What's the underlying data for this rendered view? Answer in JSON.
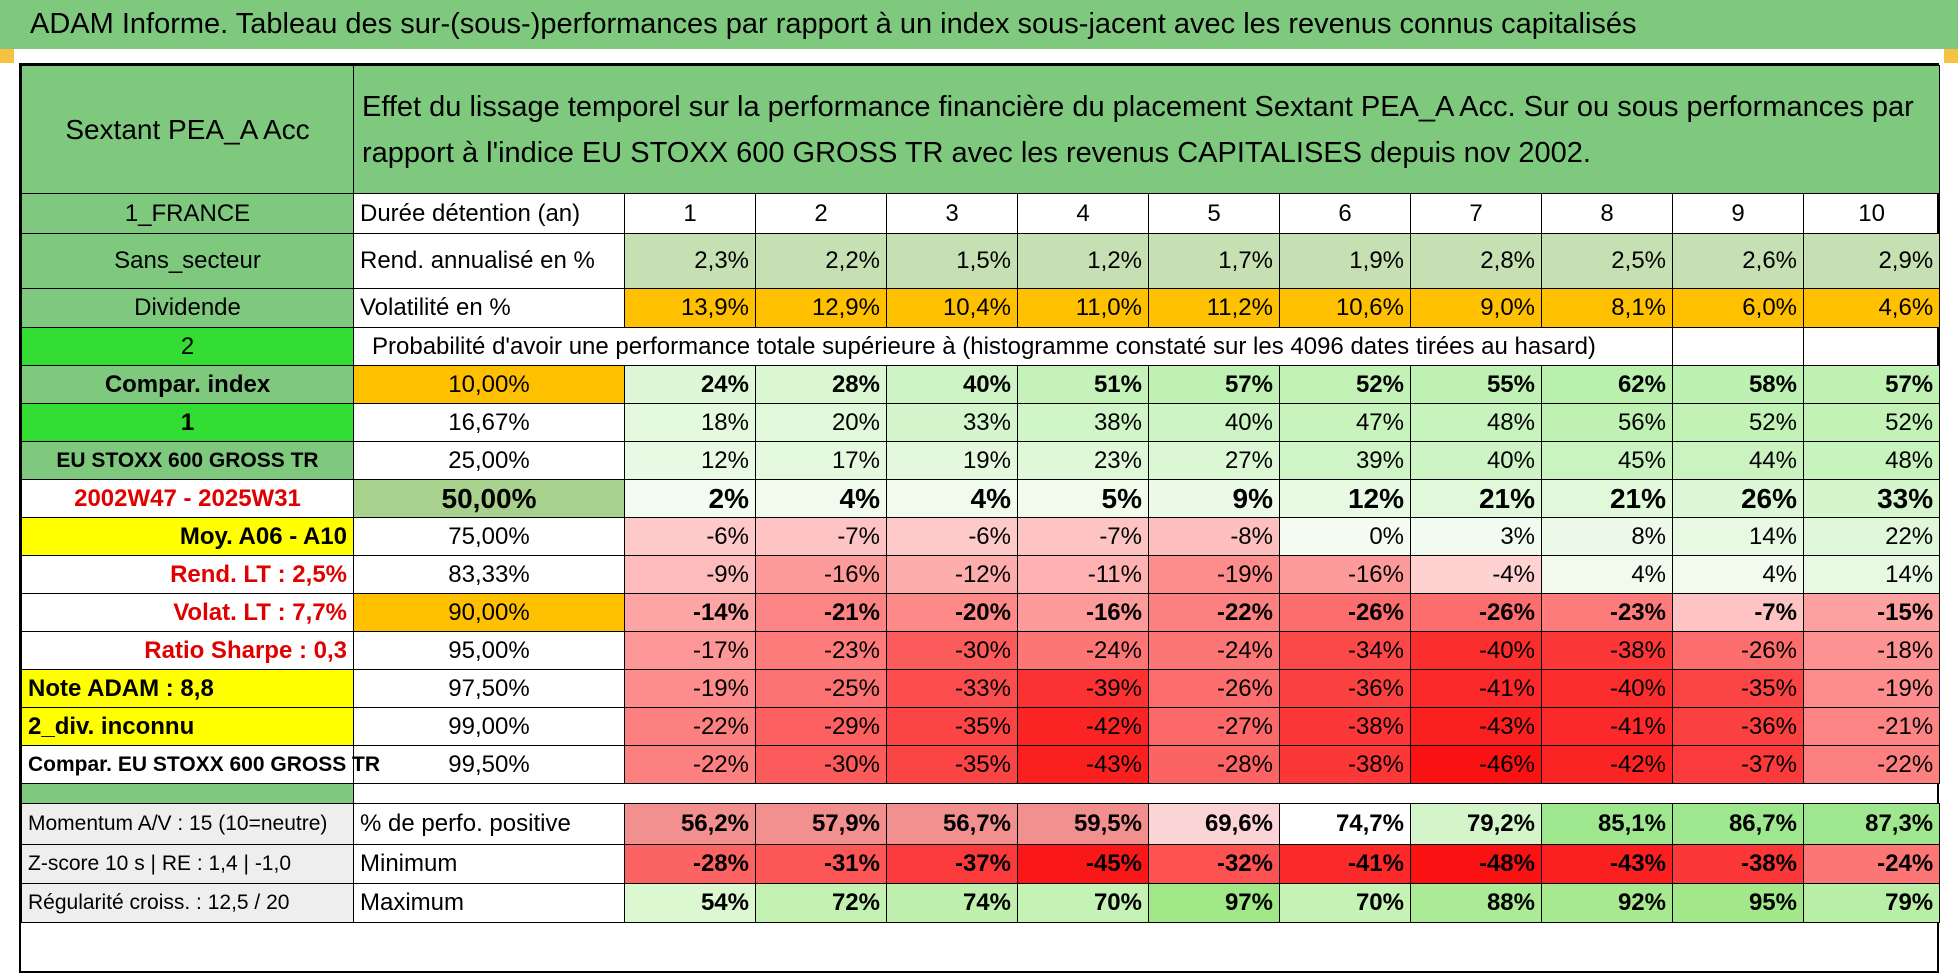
{
  "banner": "ADAM Informe. Tableau des sur-(sous-)performances par rapport à un index sous-jacent avec les revenus connus capitalisés",
  "header": {
    "fund": "Sextant PEA_A Acc",
    "description": "Effet du lissage temporel sur la performance financière du placement Sextant PEA_A Acc. Sur ou sous performances par rapport à l'indice EU STOXX 600 GROSS TR avec les revenus CAPITALISES depuis nov 2002."
  },
  "years_row": {
    "side": "1_FRANCE",
    "label": "Durée détention (an)",
    "years": [
      "1",
      "2",
      "3",
      "4",
      "5",
      "6",
      "7",
      "8",
      "9",
      "10"
    ]
  },
  "rend_row": {
    "side": "Sans_secteur",
    "label": "Rend. annualisé en %",
    "values": [
      "2,3%",
      "2,2%",
      "1,5%",
      "1,2%",
      "1,7%",
      "1,9%",
      "2,8%",
      "2,5%",
      "2,6%",
      "2,9%"
    ]
  },
  "vol_row": {
    "side": "Dividende",
    "label": "Volatilité en %",
    "values": [
      "13,9%",
      "12,9%",
      "10,4%",
      "11,0%",
      "11,2%",
      "10,6%",
      "9,0%",
      "8,1%",
      "6,0%",
      "4,6%"
    ]
  },
  "prob_header": {
    "side": "2",
    "text": "Probabilité d'avoir une performance totale supérieure à (histogramme constaté sur les 4096 dates tirées au hasard)"
  },
  "prob_rows": [
    {
      "side": "Compar. index",
      "pct": "10,00%",
      "values": [
        "24%",
        "28%",
        "40%",
        "51%",
        "57%",
        "52%",
        "55%",
        "62%",
        "58%",
        "57%"
      ]
    },
    {
      "side": "1",
      "pct": "16,67%",
      "values": [
        "18%",
        "20%",
        "33%",
        "38%",
        "40%",
        "47%",
        "48%",
        "56%",
        "52%",
        "52%"
      ]
    },
    {
      "side": "EU STOXX 600 GROSS TR",
      "pct": "25,00%",
      "values": [
        "12%",
        "17%",
        "19%",
        "23%",
        "27%",
        "39%",
        "40%",
        "45%",
        "44%",
        "48%"
      ]
    },
    {
      "side": "2002W47 - 2025W31",
      "pct": "50,00%",
      "values": [
        "2%",
        "4%",
        "4%",
        "5%",
        "9%",
        "12%",
        "21%",
        "21%",
        "26%",
        "33%"
      ]
    },
    {
      "side": "Moy. A06 - A10",
      "pct": "75,00%",
      "values": [
        "-6%",
        "-7%",
        "-6%",
        "-7%",
        "-8%",
        "0%",
        "3%",
        "8%",
        "14%",
        "22%"
      ]
    },
    {
      "side": "Rend. LT :    2,5%",
      "pct": "83,33%",
      "values": [
        "-9%",
        "-16%",
        "-12%",
        "-11%",
        "-19%",
        "-16%",
        "-4%",
        "4%",
        "4%",
        "14%"
      ]
    },
    {
      "side": "Volat. LT :    7,7%",
      "pct": "90,00%",
      "values": [
        "-14%",
        "-21%",
        "-20%",
        "-16%",
        "-22%",
        "-26%",
        "-26%",
        "-23%",
        "-7%",
        "-15%"
      ]
    },
    {
      "side": "Ratio Sharpe :    0,3",
      "pct": "95,00%",
      "values": [
        "-17%",
        "-23%",
        "-30%",
        "-24%",
        "-24%",
        "-34%",
        "-40%",
        "-38%",
        "-26%",
        "-18%"
      ]
    },
    {
      "side": "Note ADAM : 8,8",
      "pct": "97,50%",
      "values": [
        "-19%",
        "-25%",
        "-33%",
        "-39%",
        "-26%",
        "-36%",
        "-41%",
        "-40%",
        "-35%",
        "-19%"
      ]
    },
    {
      "side": "2_div. inconnu",
      "pct": "99,00%",
      "values": [
        "-22%",
        "-29%",
        "-35%",
        "-42%",
        "-27%",
        "-38%",
        "-43%",
        "-41%",
        "-36%",
        "-21%"
      ]
    },
    {
      "side": "Compar. EU STOXX 600 GROSS TR",
      "pct": "99,50%",
      "values": [
        "-22%",
        "-30%",
        "-35%",
        "-43%",
        "-28%",
        "-38%",
        "-46%",
        "-42%",
        "-37%",
        "-22%"
      ]
    }
  ],
  "stats_rows": [
    {
      "side": "Momentum A/V : 15 (10=neutre)",
      "label": "% de perfo. positive",
      "values": [
        "56,2%",
        "57,9%",
        "56,7%",
        "59,5%",
        "69,6%",
        "74,7%",
        "79,2%",
        "85,1%",
        "86,7%",
        "87,3%"
      ]
    },
    {
      "side": "Z-score 10 s | RE : 1,4 | -1,0",
      "label": "Minimum",
      "values": [
        "-28%",
        "-31%",
        "-37%",
        "-45%",
        "-32%",
        "-41%",
        "-48%",
        "-43%",
        "-38%",
        "-24%"
      ]
    },
    {
      "side": "Régularité croiss. : 12,5 / 20",
      "label": "Maximum",
      "values": [
        "54%",
        "72%",
        "74%",
        "70%",
        "97%",
        "70%",
        "88%",
        "92%",
        "95%",
        "79%"
      ]
    }
  ],
  "colors": {
    "header_green": "#7fc97f",
    "lime": "#33dd33",
    "yellow": "#ffff00",
    "orange": "#ffc000",
    "red_text": "#e00000"
  }
}
